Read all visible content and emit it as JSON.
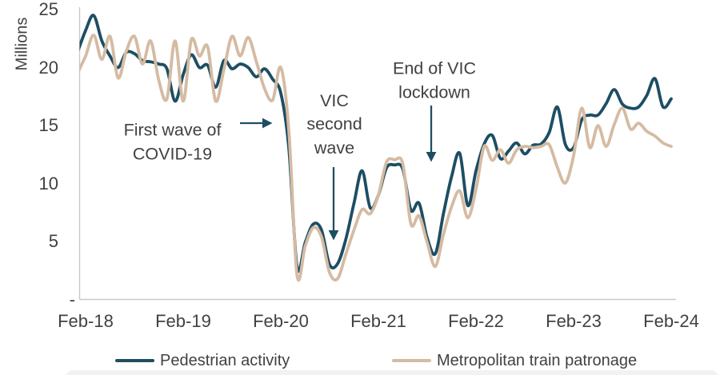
{
  "chart_data": {
    "type": "line",
    "title": "",
    "ylabel": "Millions",
    "xlabel": "",
    "ylim": [
      0,
      25
    ],
    "grid": false,
    "legend_position": "bottom",
    "yticks": [
      {
        "label": "25",
        "value": 25
      },
      {
        "label": "20",
        "value": 20
      },
      {
        "label": "15",
        "value": 15
      },
      {
        "label": "10",
        "value": 10
      },
      {
        "label": "5",
        "value": 5
      },
      {
        "label": "-",
        "value": 0
      }
    ],
    "x_tick_labels": [
      "Feb-18",
      "Feb-19",
      "Feb-20",
      "Feb-21",
      "Feb-22",
      "Feb-23",
      "Feb-24"
    ],
    "x": [
      "Jan-18",
      "Feb-18",
      "Mar-18",
      "Apr-18",
      "May-18",
      "Jun-18",
      "Jul-18",
      "Aug-18",
      "Sep-18",
      "Oct-18",
      "Nov-18",
      "Dec-18",
      "Jan-19",
      "Feb-19",
      "Mar-19",
      "Apr-19",
      "May-19",
      "Jun-19",
      "Jul-19",
      "Aug-19",
      "Sep-19",
      "Oct-19",
      "Nov-19",
      "Dec-19",
      "Jan-20",
      "Feb-20",
      "Mar-20",
      "Apr-20",
      "May-20",
      "Jun-20",
      "Jul-20",
      "Aug-20",
      "Sep-20",
      "Oct-20",
      "Nov-20",
      "Dec-20",
      "Jan-21",
      "Feb-21",
      "Mar-21",
      "Apr-21",
      "May-21",
      "Jun-21",
      "Jul-21",
      "Aug-21",
      "Sep-21",
      "Oct-21",
      "Nov-21",
      "Dec-21",
      "Jan-22",
      "Feb-22",
      "Mar-22",
      "Apr-22",
      "May-22",
      "Jun-22",
      "Jul-22",
      "Aug-22",
      "Sep-22",
      "Oct-22",
      "Nov-22",
      "Dec-22",
      "Jan-23",
      "Feb-23",
      "Mar-23",
      "Apr-23",
      "May-23",
      "Jun-23",
      "Jul-23",
      "Aug-23",
      "Sep-23",
      "Oct-23",
      "Nov-23",
      "Dec-23",
      "Jan-24",
      "Feb-24"
    ],
    "series": [
      {
        "name": "Pedestrian activity",
        "color": "#1d4e63",
        "values": [
          21.3,
          23.2,
          24.5,
          22.3,
          21.0,
          20.0,
          21.3,
          21.2,
          20.6,
          20.5,
          20.3,
          19.9,
          17.1,
          19.4,
          21.1,
          20.0,
          20.2,
          18.3,
          20.6,
          19.9,
          20.3,
          20.0,
          19.2,
          19.9,
          19.0,
          17.8,
          13.0,
          2.8,
          4.9,
          6.5,
          6.0,
          3.0,
          3.1,
          5.2,
          8.3,
          11.1,
          7.9,
          9.0,
          11.35,
          11.6,
          11.25,
          7.7,
          8.3,
          5.3,
          3.95,
          7.4,
          10.6,
          12.6,
          8.1,
          11.1,
          13.4,
          14.15,
          12.15,
          12.8,
          13.5,
          12.55,
          13.3,
          13.4,
          14.4,
          16.6,
          13.35,
          13.1,
          15.5,
          15.9,
          15.9,
          16.9,
          18.1,
          16.85,
          16.5,
          16.6,
          17.6,
          19.05,
          16.6,
          17.3
        ]
      },
      {
        "name": "Metropolitan train patronage",
        "color": "#d5bba3",
        "values": [
          19.5,
          21.0,
          22.8,
          20.7,
          22.7,
          19.1,
          21.4,
          22.7,
          20.3,
          22.3,
          18.9,
          17.3,
          22.3,
          17.1,
          22.4,
          21.0,
          21.8,
          17.1,
          19.8,
          22.7,
          21.0,
          22.6,
          20.5,
          18.2,
          17.2,
          20.0,
          14.5,
          2.1,
          4.6,
          6.2,
          5.4,
          2.3,
          1.8,
          3.9,
          6.0,
          7.75,
          7.4,
          9.0,
          11.85,
          12.05,
          11.7,
          6.5,
          7.2,
          4.9,
          2.85,
          5.6,
          8.0,
          9.35,
          7.05,
          9.5,
          13.2,
          12.0,
          12.9,
          11.75,
          12.9,
          13.2,
          13.1,
          13.2,
          13.35,
          11.4,
          10.05,
          12.4,
          16.5,
          13.1,
          15.0,
          13.2,
          15.1,
          16.5,
          14.7,
          15.2,
          14.5,
          14.1,
          13.5,
          13.2
        ]
      }
    ],
    "annotations": [
      {
        "text": "First wave of\nCOVID-19",
        "arrow": "right"
      },
      {
        "text": "VIC\nsecond\nwave",
        "arrow": "down"
      },
      {
        "text": "End of VIC\nlockdown",
        "arrow": "down"
      }
    ]
  },
  "colors": {
    "text": "#414141",
    "axis": "#c8c8c8",
    "pedestrian": "#1d4e63",
    "train": "#d5bba3",
    "bottom_bar": "#f2f2f2"
  }
}
